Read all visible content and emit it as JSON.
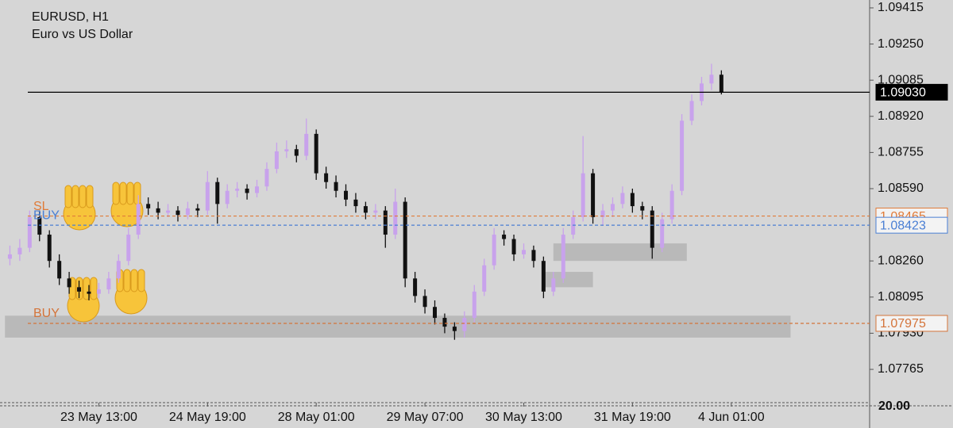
{
  "chart_data": {
    "type": "candlestick",
    "title": "EURUSD, H1",
    "subtitle": "Euro vs US Dollar",
    "up_color": "#c8a2ec",
    "down_color": "#111111",
    "ohlc": [
      [
        1.0827,
        1.0833,
        1.0824,
        1.0829
      ],
      [
        1.0829,
        1.0836,
        1.0826,
        1.0832
      ],
      [
        1.0832,
        1.0849,
        1.083,
        1.0846
      ],
      [
        1.0846,
        1.0849,
        1.0835,
        1.0838
      ],
      [
        1.0838,
        1.084,
        1.0823,
        1.0826
      ],
      [
        1.0826,
        1.0829,
        1.0815,
        1.0818
      ],
      [
        1.0818,
        1.0821,
        1.0811,
        1.0814
      ],
      [
        1.0814,
        1.0817,
        1.0809,
        1.0812
      ],
      [
        1.0812,
        1.0815,
        1.0808,
        1.0811
      ],
      [
        1.0811,
        1.0816,
        1.0809,
        1.0813
      ],
      [
        1.0813,
        1.0821,
        1.0811,
        1.0818
      ],
      [
        1.0818,
        1.0829,
        1.0816,
        1.0826
      ],
      [
        1.0826,
        1.0841,
        1.0824,
        1.0838
      ],
      [
        1.0838,
        1.0856,
        1.0836,
        1.0852
      ],
      [
        1.0852,
        1.0855,
        1.0847,
        1.085
      ],
      [
        1.085,
        1.0853,
        1.0845,
        1.0848
      ],
      [
        1.0848,
        1.0852,
        1.0846,
        1.0849
      ],
      [
        1.0849,
        1.0851,
        1.0844,
        1.0847
      ],
      [
        1.0847,
        1.0853,
        1.0845,
        1.085
      ],
      [
        1.085,
        1.0852,
        1.0846,
        1.0849
      ],
      [
        1.0849,
        1.0867,
        1.0847,
        1.0862
      ],
      [
        1.0862,
        1.0864,
        1.0843,
        1.0852
      ],
      [
        1.0852,
        1.0861,
        1.085,
        1.0858
      ],
      [
        1.0858,
        1.0862,
        1.0855,
        1.0859
      ],
      [
        1.0859,
        1.0861,
        1.0854,
        1.0857
      ],
      [
        1.0857,
        1.0863,
        1.0855,
        1.086
      ],
      [
        1.086,
        1.0871,
        1.0858,
        1.0868
      ],
      [
        1.0868,
        1.088,
        1.0866,
        1.0876
      ],
      [
        1.0876,
        1.0881,
        1.0873,
        1.0877
      ],
      [
        1.0877,
        1.0879,
        1.0871,
        1.0874
      ],
      [
        1.0874,
        1.0891,
        1.0872,
        1.0884
      ],
      [
        1.0884,
        1.0886,
        1.0863,
        1.0866
      ],
      [
        1.0866,
        1.0869,
        1.0859,
        1.0862
      ],
      [
        1.0862,
        1.0865,
        1.0855,
        1.0858
      ],
      [
        1.0858,
        1.0861,
        1.0851,
        1.0854
      ],
      [
        1.0854,
        1.0857,
        1.0848,
        1.0851
      ],
      [
        1.0851,
        1.0853,
        1.0845,
        1.0848
      ],
      [
        1.0848,
        1.0852,
        1.0845,
        1.0849
      ],
      [
        1.0849,
        1.0851,
        1.0832,
        1.0838
      ],
      [
        1.0838,
        1.0859,
        1.0836,
        1.0853
      ],
      [
        1.0853,
        1.0855,
        1.0814,
        1.0818
      ],
      [
        1.0818,
        1.0821,
        1.0807,
        1.081
      ],
      [
        1.081,
        1.0813,
        1.0802,
        1.0805
      ],
      [
        1.0805,
        1.0808,
        1.0797,
        1.08
      ],
      [
        1.08,
        1.0802,
        1.0793,
        1.0796
      ],
      [
        1.0796,
        1.0798,
        1.079,
        1.0794
      ],
      [
        1.0794,
        1.0803,
        1.0791,
        1.08
      ],
      [
        1.08,
        1.0815,
        1.0798,
        1.0812
      ],
      [
        1.0812,
        1.0827,
        1.081,
        1.0824
      ],
      [
        1.0824,
        1.0841,
        1.0822,
        1.0838
      ],
      [
        1.0838,
        1.084,
        1.0833,
        1.0836
      ],
      [
        1.0836,
        1.0838,
        1.0826,
        1.0829
      ],
      [
        1.0829,
        1.0834,
        1.0827,
        1.0831
      ],
      [
        1.0831,
        1.0833,
        1.0823,
        1.0826
      ],
      [
        1.0826,
        1.0828,
        1.0809,
        1.0812
      ],
      [
        1.0812,
        1.0821,
        1.081,
        1.0818
      ],
      [
        1.0818,
        1.0841,
        1.0816,
        1.0838
      ],
      [
        1.0838,
        1.0849,
        1.0836,
        1.0846
      ],
      [
        1.0846,
        1.0883,
        1.0844,
        1.0866
      ],
      [
        1.0866,
        1.0868,
        1.0843,
        1.0846
      ],
      [
        1.0846,
        1.0852,
        1.0842,
        1.0849
      ],
      [
        1.0849,
        1.0855,
        1.0846,
        1.0852
      ],
      [
        1.0852,
        1.086,
        1.085,
        1.0857
      ],
      [
        1.0857,
        1.0859,
        1.0848,
        1.0851
      ],
      [
        1.0851,
        1.0853,
        1.0845,
        1.0849
      ],
      [
        1.0849,
        1.0851,
        1.0827,
        1.0832
      ],
      [
        1.0832,
        1.0848,
        1.083,
        1.0845
      ],
      [
        1.0845,
        1.0861,
        1.0843,
        1.0858
      ],
      [
        1.0858,
        1.0893,
        1.0856,
        1.089
      ],
      [
        1.089,
        1.0902,
        1.0888,
        1.0899
      ],
      [
        1.0899,
        1.091,
        1.0897,
        1.0907
      ],
      [
        1.0907,
        1.0916,
        1.0904,
        1.0911
      ],
      [
        1.0911,
        1.0913,
        1.0902,
        1.0903
      ]
    ],
    "xlim": [
      -1,
      87
    ],
    "xticks": [
      {
        "value": 9,
        "label": "23 May 13:00"
      },
      {
        "value": 20,
        "label": "24 May 19:00"
      },
      {
        "value": 31,
        "label": "28 May 01:00"
      },
      {
        "value": 42,
        "label": "29 May 07:00"
      },
      {
        "value": 52,
        "label": "30 May 13:00"
      },
      {
        "value": 63,
        "label": "31 May 19:00"
      },
      {
        "value": 73,
        "label": "4 Jun 01:00"
      }
    ],
    "ylim": [
      1.07624,
      1.09451
    ],
    "yticks": [
      1.09415,
      {
        "value": 1.0925,
        "label": "1.09250"
      },
      1.09085,
      {
        "value": 1.0892,
        "label": "1.08920"
      },
      1.08755,
      {
        "value": 1.0859,
        "label": "1.08590"
      },
      {
        "value": 1.0826,
        "label": "1.08260"
      },
      1.08095,
      {
        "value": 1.0793,
        "label": "1.07930"
      },
      1.07765
    ],
    "zones": [
      {
        "x": [
          -0.5,
          79
        ],
        "y": [
          1.0791,
          1.0801
        ]
      },
      {
        "x": [
          55,
          68.5
        ],
        "y": [
          1.0826,
          1.0834
        ]
      },
      {
        "x": [
          54,
          59
        ],
        "y": [
          1.0814,
          1.0821
        ]
      }
    ],
    "lines": [
      {
        "name": "SL",
        "value": 1.08465,
        "label": "1.08465",
        "color": "#e07b39",
        "dashed": true
      },
      {
        "name": "BUY",
        "value": 1.08423,
        "label": "1.08423",
        "color": "#4a7fd4",
        "dashed": true
      },
      {
        "name": "BUY",
        "value": 1.07975,
        "label": "1.07975",
        "color": "#d4743a",
        "dashed": true
      },
      {
        "value": 1.0903,
        "label": "1.09030",
        "color": "#000000",
        "dashed": false
      }
    ],
    "indicator_label": "20.00"
  }
}
